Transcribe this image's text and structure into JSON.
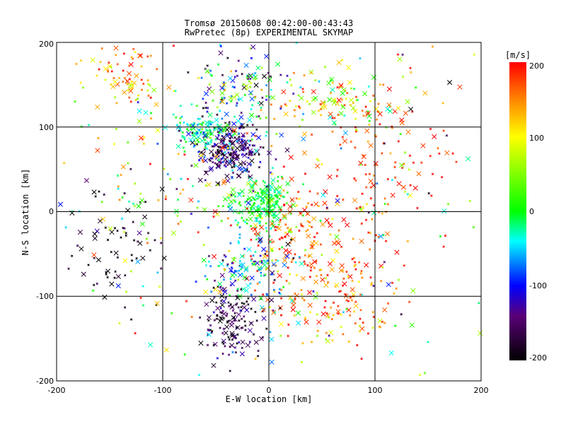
{
  "chart_data": {
    "type": "scatter",
    "title": "Tromsø 20150608 00:42:00-00:43:43",
    "subtitle": "RwPretec (8p) EXPERIMENTAL SKYMAP",
    "xlabel": "E-W location [km]",
    "ylabel": "N-S location [km]",
    "xlim": [
      -200,
      200
    ],
    "ylim": [
      -200,
      200
    ],
    "x_ticks": [
      "-200",
      "-100",
      "0",
      "100",
      "200"
    ],
    "y_ticks": [
      "-200",
      "-100",
      "0",
      "100",
      "200"
    ],
    "grid": "on",
    "colorbar": {
      "label": "[m/s]",
      "range": [
        -200,
        200
      ],
      "ticks": [
        "200",
        "100",
        "0",
        "-100",
        "-200"
      ],
      "colors": [
        "#000000",
        "#5a0078",
        "#0000ff",
        "#00ffff",
        "#00ff00",
        "#ffff00",
        "#ff8000",
        "#ff0000"
      ]
    },
    "marker_legend": {
      "small": "dot/small cross",
      "large": "x"
    },
    "clusters": [
      {
        "cx": -35,
        "cy": 75,
        "sx": 15,
        "sy": 18,
        "n": 260,
        "vmean": -150,
        "vsd": 40
      },
      {
        "cx": -62,
        "cy": 95,
        "sx": 14,
        "sy": 10,
        "n": 110,
        "vmean": -20,
        "vsd": 30
      },
      {
        "cx": -5,
        "cy": 10,
        "sx": 12,
        "sy": 14,
        "n": 200,
        "vmean": -5,
        "vsd": 20
      },
      {
        "cx": 40,
        "cy": -40,
        "sx": 35,
        "sy": 40,
        "n": 220,
        "vmean": 170,
        "vsd": 40
      },
      {
        "cx": -135,
        "cy": 160,
        "sx": 18,
        "sy": 18,
        "n": 80,
        "vmean": 140,
        "vsd": 45
      },
      {
        "cx": -30,
        "cy": 150,
        "sx": 20,
        "sy": 25,
        "n": 110,
        "vmean": -60,
        "vsd": 80
      },
      {
        "cx": 50,
        "cy": 130,
        "sx": 40,
        "sy": 20,
        "n": 130,
        "vmean": 90,
        "vsd": 70
      },
      {
        "cx": 110,
        "cy": 60,
        "sx": 45,
        "sy": 45,
        "n": 100,
        "vmean": 180,
        "vsd": 30
      },
      {
        "cx": -35,
        "cy": -130,
        "sx": 14,
        "sy": 25,
        "n": 150,
        "vmean": -170,
        "vsd": 30
      },
      {
        "cx": -20,
        "cy": -70,
        "sx": 20,
        "sy": 20,
        "n": 110,
        "vmean": -60,
        "vsd": 60
      },
      {
        "cx": -140,
        "cy": -50,
        "sx": 25,
        "sy": 35,
        "n": 60,
        "vmean": -190,
        "vsd": 20
      },
      {
        "cx": 70,
        "cy": -120,
        "sx": 30,
        "sy": 25,
        "n": 80,
        "vmean": 140,
        "vsd": 60
      },
      {
        "cx": -80,
        "cy": 20,
        "sx": 50,
        "sy": 50,
        "n": 120,
        "vmean": 0,
        "vsd": 110
      },
      {
        "cx": 0,
        "cy": 0,
        "sx": 110,
        "sy": 110,
        "n": 260,
        "vmean": 40,
        "vsd": 120
      }
    ]
  }
}
